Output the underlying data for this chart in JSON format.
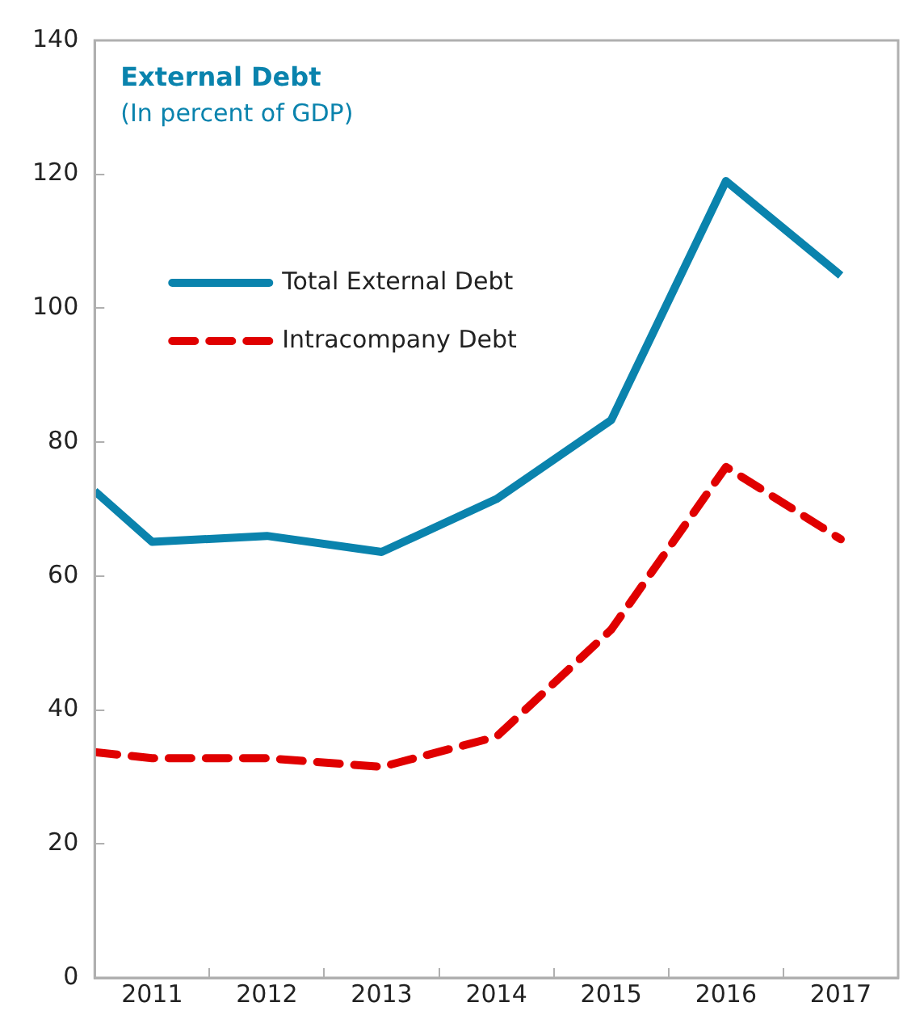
{
  "chart_data": {
    "type": "line",
    "title": "External Debt",
    "subtitle": "(In percent of GDP)",
    "x": [
      2010.5,
      2011,
      2012,
      2013,
      2014,
      2015,
      2016,
      2017
    ],
    "xlim": [
      2010.5,
      2017.5
    ],
    "xticks": [
      {
        "value": 2011,
        "label": "2011"
      },
      {
        "value": 2011.5,
        "label": null
      },
      {
        "value": 2012,
        "label": "2012"
      },
      {
        "value": 2012.5,
        "label": null
      },
      {
        "value": 2013,
        "label": "2013"
      },
      {
        "value": 2013.5,
        "label": null
      },
      {
        "value": 2014,
        "label": "2014"
      },
      {
        "value": 2014.5,
        "label": null
      },
      {
        "value": 2015,
        "label": "2015"
      },
      {
        "value": 2015.5,
        "label": null
      },
      {
        "value": 2016,
        "label": "2016"
      },
      {
        "value": 2016.5,
        "label": null
      },
      {
        "value": 2017,
        "label": "2017"
      }
    ],
    "ylim": [
      0,
      140
    ],
    "yticks": [
      0,
      20,
      40,
      60,
      80,
      100,
      120,
      140
    ],
    "series": [
      {
        "name": "Total External Debt",
        "color": "#0a83ad",
        "line_style": "solid",
        "values": [
          72.7,
          65.1,
          66,
          63.6,
          71.5,
          83.3,
          119,
          104.9
        ]
      },
      {
        "name": "Intracompany Debt",
        "color": "#e00000",
        "line_style": "dashed",
        "values": [
          33.7,
          32.8,
          32.8,
          31.5,
          36,
          52,
          76.3,
          65.5
        ]
      }
    ],
    "legend": "top left",
    "grid": false,
    "marker": "none"
  }
}
